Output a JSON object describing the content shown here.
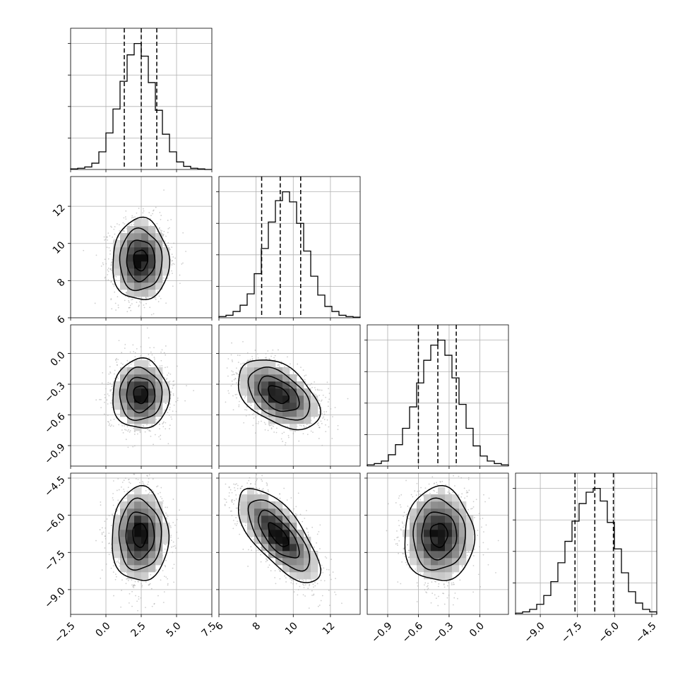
{
  "chart_data": {
    "type": "scatter",
    "plot_kind": "corner",
    "title": "",
    "grid": true,
    "colors": {
      "line": "#000000",
      "grid": "#b0b0b0",
      "samples": "#a6a6a6",
      "density_max": "#000000"
    },
    "parameters": [
      {
        "id": "p0",
        "range": [
          -2.5,
          7.5
        ],
        "ticks": [
          -2.5,
          0.0,
          2.5,
          5.0,
          7.5
        ],
        "tick_labels": [
          "−2.5",
          "0.0",
          "2.5",
          "5.0",
          "7.5"
        ],
        "quantiles": [
          1.3,
          2.5,
          3.6
        ],
        "hist_bins": [
          -2.5,
          -2.0,
          -1.5,
          -1.0,
          -0.5,
          0.0,
          0.5,
          1.0,
          1.5,
          2.0,
          2.5,
          3.0,
          3.5,
          4.0,
          4.5,
          5.0,
          5.5,
          6.0,
          6.5,
          7.0,
          7.5
        ],
        "hist_counts": [
          0.005,
          0.01,
          0.02,
          0.05,
          0.14,
          0.29,
          0.48,
          0.7,
          0.91,
          1.0,
          0.9,
          0.69,
          0.47,
          0.28,
          0.14,
          0.06,
          0.025,
          0.01,
          0.005,
          0.0
        ]
      },
      {
        "id": "p1",
        "range": [
          6.0,
          13.6
        ],
        "ticks": [
          6,
          8,
          10,
          12
        ],
        "tick_labels": [
          "6",
          "8",
          "10",
          "12"
        ],
        "quantiles": [
          8.3,
          9.3,
          10.4
        ],
        "hist_bins": [
          6.0,
          6.38,
          6.76,
          7.14,
          7.52,
          7.9,
          8.28,
          8.66,
          9.04,
          9.42,
          9.8,
          10.18,
          10.56,
          10.94,
          11.32,
          11.7,
          12.08,
          12.46,
          12.84,
          13.22,
          13.6
        ],
        "hist_counts": [
          0.01,
          0.02,
          0.05,
          0.1,
          0.19,
          0.35,
          0.55,
          0.76,
          0.93,
          1.0,
          0.92,
          0.75,
          0.53,
          0.33,
          0.18,
          0.09,
          0.05,
          0.02,
          0.01,
          0.005
        ]
      },
      {
        "id": "p2",
        "range": [
          -1.1,
          0.28
        ],
        "ticks": [
          -0.9,
          -0.6,
          -0.3,
          0.0
        ],
        "tick_labels": [
          "−0.9",
          "−0.6",
          "−0.3",
          "0.0"
        ],
        "quantiles": [
          -0.6,
          -0.41,
          -0.23
        ],
        "hist_bins": [
          -1.1,
          -1.031,
          -0.962,
          -0.893,
          -0.824,
          -0.755,
          -0.686,
          -0.617,
          -0.548,
          -0.479,
          -0.41,
          -0.341,
          -0.272,
          -0.203,
          -0.134,
          -0.065,
          0.004,
          0.073,
          0.142,
          0.211,
          0.28
        ],
        "hist_counts": [
          0.01,
          0.02,
          0.04,
          0.09,
          0.17,
          0.3,
          0.47,
          0.66,
          0.84,
          0.96,
          1.0,
          0.88,
          0.7,
          0.49,
          0.3,
          0.16,
          0.08,
          0.04,
          0.02,
          0.01
        ]
      },
      {
        "id": "p3",
        "range": [
          -10.0,
          -4.3
        ],
        "ticks": [
          -9.0,
          -7.5,
          -6.0,
          -4.5
        ],
        "tick_labels": [
          "−9.0",
          "−7.5",
          "−6.0",
          "−4.5"
        ],
        "quantiles": [
          -7.6,
          -6.8,
          -6.05
        ],
        "hist_bins": [
          -10.0,
          -9.715,
          -9.43,
          -9.145,
          -8.86,
          -8.575,
          -8.29,
          -8.005,
          -7.72,
          -7.435,
          -7.15,
          -6.865,
          -6.58,
          -6.295,
          -6.01,
          -5.725,
          -5.44,
          -5.155,
          -4.87,
          -4.585,
          -4.3
        ],
        "hist_counts": [
          0.01,
          0.02,
          0.04,
          0.08,
          0.15,
          0.26,
          0.41,
          0.58,
          0.74,
          0.88,
          0.97,
          1.0,
          0.9,
          0.73,
          0.52,
          0.33,
          0.18,
          0.09,
          0.04,
          0.02
        ]
      }
    ],
    "pairs": [
      {
        "x": "p0",
        "y": "p1",
        "center": [
          2.45,
          9.1
        ],
        "std": [
          1.0,
          1.1
        ],
        "correlation": 0.0
      },
      {
        "x": "p0",
        "y": "p2",
        "center": [
          2.45,
          -0.4
        ],
        "std": [
          1.0,
          0.17
        ],
        "correlation": 0.0
      },
      {
        "x": "p1",
        "y": "p2",
        "center": [
          9.2,
          -0.4
        ],
        "std": [
          1.1,
          0.17
        ],
        "correlation": -0.45
      },
      {
        "x": "p0",
        "y": "p3",
        "center": [
          2.4,
          -6.8
        ],
        "std": [
          1.0,
          0.95
        ],
        "correlation": 0.0
      },
      {
        "x": "p1",
        "y": "p3",
        "center": [
          9.2,
          -6.8
        ],
        "std": [
          1.1,
          0.95
        ],
        "correlation": -0.7
      },
      {
        "x": "p2",
        "y": "p3",
        "center": [
          -0.4,
          -6.8
        ],
        "std": [
          0.17,
          0.95
        ],
        "correlation": 0.0
      }
    ],
    "contour_levels_sigma": [
      0.5,
      1.0,
      1.5,
      2.0
    ]
  }
}
